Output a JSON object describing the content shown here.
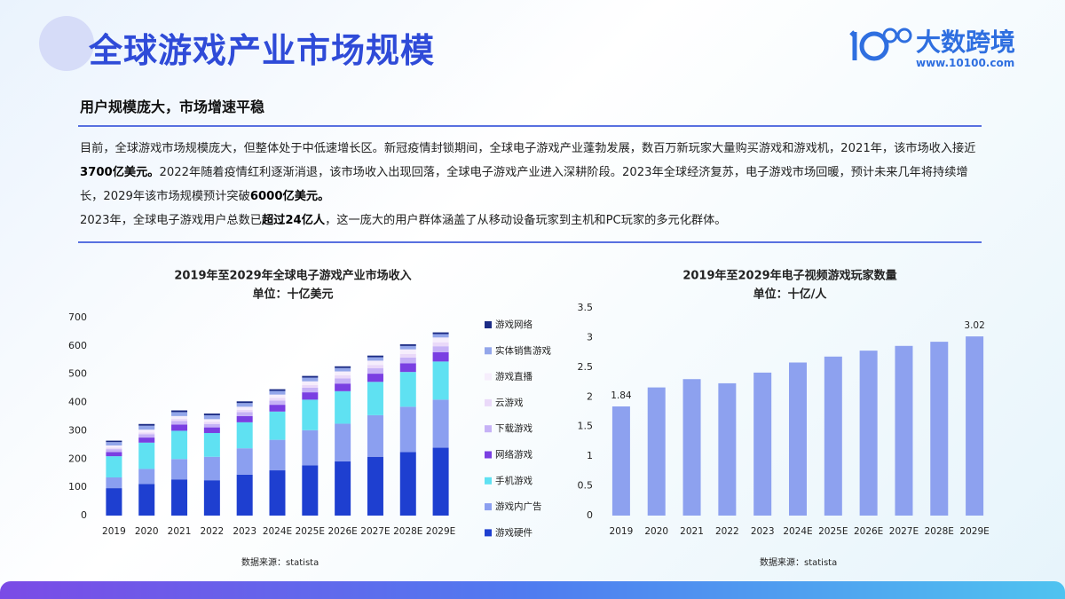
{
  "header": {
    "title": "全球游戏产业市场规模",
    "brand": "大数跨境",
    "url": "www.10100.com"
  },
  "section": {
    "heading": "用户规模庞大，市场增速平稳",
    "paragraphs": [
      {
        "runs": [
          {
            "text": "目前，全球游戏市场规模庞大，但整体处于中低速增长区。新冠疫情封锁期间，全球电子游戏产业蓬勃发展，数百万新玩家大量购买游戏和游戏机，2021年，该市场收入接近",
            "bold": false
          },
          {
            "text": "3700亿美元。",
            "bold": true
          },
          {
            "text": "2022年随着疫情红利逐渐消退，该市场收入出现回落，全球电子游戏产业进入深耕阶段。2023年全球经济复苏，电子游戏市场回暖，预计未来几年将持续增长，2029年该市场规模预计突破",
            "bold": false
          },
          {
            "text": "6000亿美元。",
            "bold": true
          }
        ]
      },
      {
        "runs": [
          {
            "text": "2023年，全球电子游戏用户总数已",
            "bold": false
          },
          {
            "text": "超过24亿人",
            "bold": true
          },
          {
            "text": "，这一庞大的用户群体涵盖了从移动设备玩家到主机和PC玩家的多元化群体。",
            "bold": false
          }
        ]
      }
    ]
  },
  "chart_data": [
    {
      "type": "stacked_bar",
      "title": "2019年至2029年全球电子游戏产业市场收入",
      "subtitle": "单位：十亿美元",
      "source": "数据来源：statista",
      "categories": [
        "2019",
        "2020",
        "2021",
        "2022",
        "2023",
        "2024E",
        "2025E",
        "2026E",
        "2027E",
        "2028E",
        "2029E"
      ],
      "ylim": [
        0,
        700
      ],
      "yticks": [
        0,
        100,
        200,
        300,
        400,
        500,
        600,
        700
      ],
      "grid": false,
      "legend": "right",
      "series": [
        {
          "name": "游戏硬件",
          "color": "#1e3fd0",
          "values": [
            97,
            112,
            128,
            125,
            145,
            160,
            178,
            192,
            208,
            225,
            240
          ]
        },
        {
          "name": "游戏内广告",
          "color": "#8b9ff0",
          "values": [
            38,
            53,
            72,
            83,
            93,
            108,
            124,
            133,
            147,
            160,
            170
          ]
        },
        {
          "name": "手机游戏",
          "color": "#5fe1f2",
          "values": [
            75,
            93,
            100,
            84,
            92,
            100,
            108,
            115,
            118,
            123,
            135
          ]
        },
        {
          "name": "网络游戏",
          "color": "#7a3fe2",
          "values": [
            15,
            18,
            22,
            20,
            22,
            24,
            26,
            27,
            29,
            31,
            33
          ]
        },
        {
          "name": "下载游戏",
          "color": "#c6b2f6",
          "values": [
            10,
            12,
            13,
            12,
            14,
            15,
            16,
            18,
            19,
            20,
            21
          ]
        },
        {
          "name": "云游戏",
          "color": "#ead9f9",
          "values": [
            5,
            6,
            7,
            7,
            8,
            9,
            10,
            11,
            12,
            13,
            14
          ]
        },
        {
          "name": "游戏直播",
          "color": "#f6eefc",
          "values": [
            8,
            10,
            10,
            10,
            11,
            12,
            13,
            14,
            15,
            16,
            17
          ]
        },
        {
          "name": "实体销售游戏",
          "color": "#93a6ea",
          "values": [
            12,
            14,
            14,
            14,
            13,
            13,
            13,
            12,
            12,
            12,
            12
          ]
        },
        {
          "name": "游戏网络",
          "color": "#1b2b85",
          "values": [
            5,
            6,
            6,
            6,
            6,
            6,
            6,
            6,
            6,
            6,
            6
          ]
        }
      ]
    },
    {
      "type": "bar",
      "title": "2019年至2029年电子视频游戏玩家数量",
      "subtitle": "单位：十亿/人",
      "source": "数据来源：statista",
      "categories": [
        "2019",
        "2020",
        "2021",
        "2022",
        "2023",
        "2024E",
        "2025E",
        "2026E",
        "2027E",
        "2028E",
        "2029E"
      ],
      "values": [
        1.84,
        2.16,
        2.3,
        2.23,
        2.41,
        2.58,
        2.68,
        2.78,
        2.86,
        2.93,
        3.02
      ],
      "value_labels": [
        "1.84",
        null,
        null,
        null,
        null,
        null,
        null,
        null,
        null,
        null,
        "3.02"
      ],
      "color": "#8da1ef",
      "ylim": [
        0,
        3.5
      ],
      "yticks": [
        0,
        0.5,
        1,
        1.5,
        2,
        2.5,
        3,
        3.5
      ],
      "grid": false
    }
  ]
}
